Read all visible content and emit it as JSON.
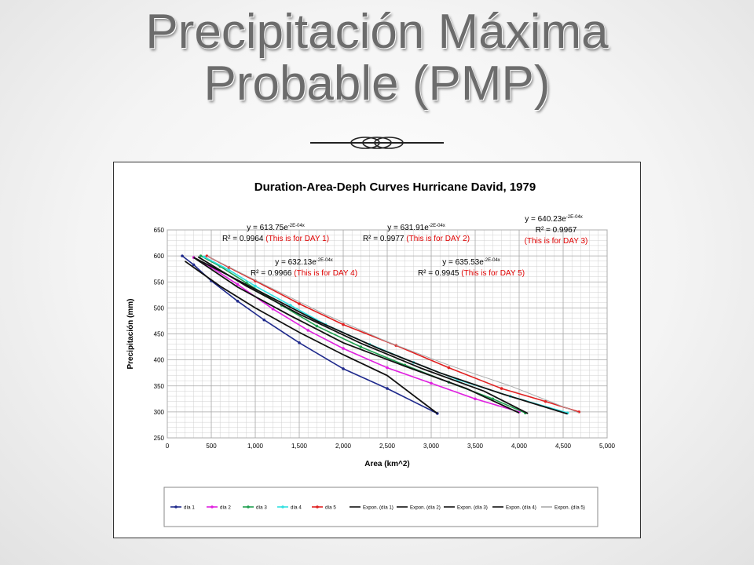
{
  "slide": {
    "title_line1": "Precipitación Máxima",
    "title_line2": "Probable (PMP)"
  },
  "chart_data": {
    "type": "line",
    "title": "Duration-Area-Deph Curves Hurricane David, 1979",
    "xlabel": "Area (km^2)",
    "ylabel": "Precipitación (mm)",
    "xlim": [
      0,
      5000
    ],
    "ylim": [
      250,
      650
    ],
    "xticks": [
      0,
      500,
      1000,
      1500,
      2000,
      2500,
      3000,
      3500,
      4000,
      4500,
      5000
    ],
    "xtick_labels": [
      "0",
      "500",
      "1,000",
      "1,500",
      "2,000",
      "2,500",
      "3,000",
      "3,500",
      "4,000",
      "4,500",
      "5,000"
    ],
    "yticks": [
      250,
      300,
      350,
      400,
      450,
      500,
      550,
      600,
      650
    ],
    "grid": true,
    "legend_position": "bottom",
    "series": [
      {
        "name": "día 1",
        "color": "#1f2a8c",
        "x": [
          170,
          300,
          500,
          800,
          1100,
          1500,
          2000,
          2500,
          3070
        ],
        "y": [
          600,
          583,
          552,
          513,
          477,
          433,
          383,
          345,
          297
        ]
      },
      {
        "name": "día 2",
        "color": "#e020e0",
        "x": [
          300,
          500,
          800,
          1200,
          1600,
          2000,
          2500,
          3000,
          3500,
          4000
        ],
        "y": [
          597,
          578,
          545,
          498,
          457,
          422,
          385,
          355,
          325,
          300
        ]
      },
      {
        "name": "día 3",
        "color": "#20a050",
        "x": [
          380,
          600,
          900,
          1300,
          1700,
          2200,
          2700,
          3200,
          3700,
          4070
        ],
        "y": [
          600,
          580,
          548,
          505,
          465,
          425,
          390,
          357,
          325,
          298
        ]
      },
      {
        "name": "día 4",
        "color": "#30e0e0",
        "x": [
          420,
          700,
          1000,
          1400,
          1800,
          2300,
          2800,
          3300,
          3900,
          4550
        ],
        "y": [
          598,
          573,
          542,
          505,
          468,
          430,
          395,
          362,
          330,
          298
        ]
      },
      {
        "name": "día 5",
        "color": "#e02020",
        "x": [
          450,
          700,
          1000,
          1500,
          2000,
          2600,
          3200,
          3800,
          4300,
          4680
        ],
        "y": [
          600,
          578,
          552,
          508,
          468,
          428,
          385,
          345,
          320,
          300
        ]
      },
      {
        "name": "Expon. (día 1)",
        "color": "#111111",
        "x": [
          200,
          600,
          1000,
          1500,
          2000,
          2500,
          3070
        ],
        "y": [
          590,
          542,
          500,
          453,
          410,
          370,
          297
        ]
      },
      {
        "name": "Expon. (día 2)",
        "color": "#111111",
        "x": [
          300,
          800,
          1400,
          2000,
          2700,
          3400,
          4000
        ],
        "y": [
          597,
          540,
          485,
          433,
          388,
          345,
          298
        ]
      },
      {
        "name": "Expon. (día 3)",
        "color": "#111111",
        "x": [
          350,
          900,
          1500,
          2200,
          2900,
          3600,
          4100
        ],
        "y": [
          598,
          542,
          488,
          432,
          383,
          340,
          297
        ]
      },
      {
        "name": "Expon. (día 4)",
        "color": "#111111",
        "x": [
          300,
          1000,
          1700,
          2400,
          3100,
          3800,
          4550
        ],
        "y": [
          597,
          536,
          475,
          422,
          375,
          335,
          296
        ]
      },
      {
        "name": "Expon. (día 5)",
        "color": "#aaaaaa",
        "x": [
          450,
          1100,
          1800,
          2500,
          3200,
          3900,
          4680
        ],
        "y": [
          600,
          545,
          487,
          435,
          390,
          350,
          298
        ]
      }
    ],
    "annotations": [
      {
        "equation": "y = 613.75e",
        "exponent": "-2E-04x",
        "r2": "R² = 0.9964",
        "note": "(This is for DAY 1)"
      },
      {
        "equation": "y = 631.91e",
        "exponent": "-2E-04x",
        "r2": "R² = 0.9977",
        "note": "(This is for DAY 2)"
      },
      {
        "equation": "y = 640.23e",
        "exponent": "-2E-04x",
        "r2": "R² = 0.9967",
        "note": "(This is for DAY 3)"
      },
      {
        "equation": "y = 632.13e",
        "exponent": "-2E-04x",
        "r2": "R² = 0.9966",
        "note": "(This is for DAY 4)"
      },
      {
        "equation": "y = 635.53e",
        "exponent": "-2E-04x",
        "r2": "R² = 0.9945",
        "note": "(This is for DAY 5)"
      }
    ]
  }
}
